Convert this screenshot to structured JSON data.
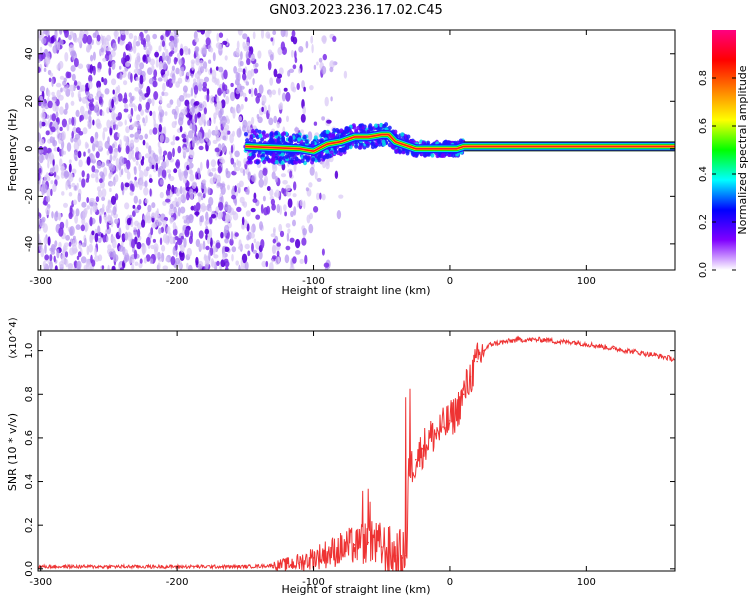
{
  "title": "GN03.2023.236.17.02.C45",
  "chart_data": [
    {
      "type": "heatmap",
      "xlabel": "Height of straight line (km)",
      "ylabel": "Frequency (Hz)",
      "xlim": [
        -302,
        165
      ],
      "ylim": [
        -51,
        50
      ],
      "x_ticks": [
        -300,
        -200,
        -100,
        0,
        100
      ],
      "y_ticks": [
        -40,
        -20,
        0,
        20,
        40
      ],
      "colorbar": {
        "label": "Normalized spectral amplitude",
        "range": [
          0,
          1
        ],
        "ticks": [
          0.0,
          0.2,
          0.4,
          0.6,
          0.8
        ],
        "colors": [
          "#ffffff",
          "#8000ff",
          "#0000ff",
          "#00ffff",
          "#00ff00",
          "#ffff00",
          "#ff8000",
          "#ff0000",
          "#ff0080"
        ]
      },
      "ridge": {
        "x": [
          -150,
          -130,
          -110,
          -100,
          -90,
          -80,
          -70,
          -60,
          -50,
          -45,
          -40,
          -35,
          -30,
          -25,
          -20,
          -15,
          -10,
          -5,
          0,
          5,
          10,
          50,
          100,
          165
        ],
        "frequency": [
          1,
          0.5,
          0,
          -1,
          2,
          3,
          5,
          5,
          6,
          6,
          3,
          2,
          1,
          0,
          0,
          0,
          0,
          0,
          0,
          0,
          1,
          1,
          1,
          1
        ]
      },
      "noise_region_x": [
        -302,
        -115
      ]
    },
    {
      "type": "line",
      "xlabel": "Height of straight line (km)",
      "ylabel": "SNR (10 * v/v)",
      "y_multiplier": "(x10^4)",
      "xlim": [
        -302,
        165
      ],
      "ylim": [
        -0.01,
        1.09
      ],
      "x_ticks": [
        -300,
        -200,
        -100,
        0,
        100
      ],
      "y_ticks": [
        0.0,
        0.2,
        0.4,
        0.6,
        0.8,
        1.0
      ],
      "line_color": "#ee3333",
      "series": [
        {
          "x": [
            -302,
            -250,
            -200,
            -150,
            -130,
            -120,
            -110,
            -100,
            -90,
            -80,
            -70,
            -60,
            -50,
            -40,
            -35,
            -32,
            -30,
            -25,
            -20,
            -15,
            -10,
            -5,
            0,
            5,
            10,
            15,
            20,
            25,
            30,
            40,
            50,
            60,
            70,
            80,
            90,
            100,
            110,
            120,
            130,
            140,
            150,
            165
          ],
          "values": [
            0.01,
            0.01,
            0.01,
            0.01,
            0.015,
            0.02,
            0.03,
            0.05,
            0.07,
            0.09,
            0.11,
            0.12,
            0.1,
            0.06,
            0.05,
            0.06,
            0.45,
            0.5,
            0.55,
            0.6,
            0.62,
            0.65,
            0.68,
            0.72,
            0.8,
            0.88,
            0.95,
            1.0,
            1.03,
            1.04,
            1.05,
            1.05,
            1.05,
            1.04,
            1.04,
            1.03,
            1.02,
            1.01,
            1.0,
            0.99,
            0.98,
            0.96
          ]
        }
      ]
    }
  ]
}
